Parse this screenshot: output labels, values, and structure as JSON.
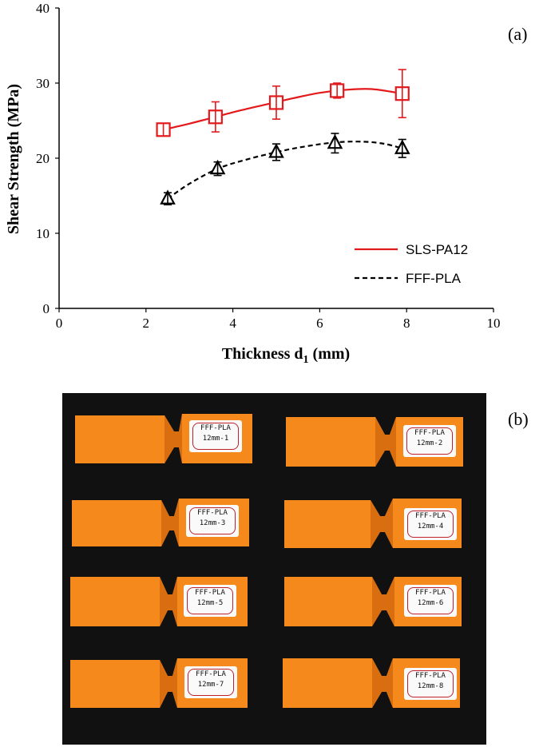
{
  "panel_a_label": "(a)",
  "panel_b_label": "(b)",
  "chart_data": {
    "type": "line",
    "xlabel_main": "Thickness d",
    "xlabel_sub": "1",
    "xlabel_unit": " (mm)",
    "ylabel": "Shear Strength (MPa)",
    "xlim": [
      0,
      10
    ],
    "ylim": [
      0,
      40
    ],
    "xticks": [
      0,
      2,
      4,
      6,
      8,
      10
    ],
    "yticks": [
      0,
      10,
      20,
      30,
      40
    ],
    "grid": false,
    "legend_position": "bottom-right",
    "series": [
      {
        "name": "SLS-PA12",
        "color": "#e3191c",
        "marker": "square",
        "line_style": "solid",
        "x": [
          2.4,
          3.6,
          5.0,
          6.4,
          7.9
        ],
        "y": [
          23.8,
          25.5,
          27.4,
          29.0,
          28.6
        ],
        "error": [
          0.0,
          2.0,
          2.2,
          1.0,
          3.2
        ],
        "curve_x": [
          2.4,
          3.0,
          3.6,
          4.2,
          4.8,
          5.4,
          6.0,
          6.6,
          7.2,
          7.9
        ],
        "curve_y": [
          23.8,
          24.6,
          25.5,
          26.4,
          27.2,
          28.0,
          28.7,
          29.1,
          29.2,
          28.6
        ]
      },
      {
        "name": "FFF-PLA",
        "color": "#000000",
        "marker": "triangle",
        "line_style": "dashed",
        "x": [
          2.5,
          3.65,
          5.0,
          6.35,
          7.9
        ],
        "y": [
          14.6,
          18.6,
          20.8,
          22.0,
          21.3
        ],
        "error": [
          0.8,
          0.9,
          1.1,
          1.3,
          1.2
        ],
        "curve_x": [
          2.5,
          3.0,
          3.65,
          4.3,
          5.0,
          5.6,
          6.35,
          7.0,
          7.5,
          7.9
        ],
        "curve_y": [
          14.6,
          16.6,
          18.6,
          19.8,
          20.8,
          21.5,
          22.1,
          22.2,
          21.9,
          21.3
        ]
      }
    ]
  },
  "specimens": [
    {
      "line1": "FFF-PLA",
      "line2": "12mm-1"
    },
    {
      "line1": "FFF-PLA",
      "line2": "12mm-2"
    },
    {
      "line1": "FFF-PLA",
      "line2": "12mm-3"
    },
    {
      "line1": "FFF-PLA",
      "line2": "12mm-4"
    },
    {
      "line1": "FFF-PLA",
      "line2": "12mm-5"
    },
    {
      "line1": "FFF-PLA",
      "line2": "12mm-6"
    },
    {
      "line1": "FFF-PLA",
      "line2": "12mm-7"
    },
    {
      "line1": "FFF-PLA",
      "line2": "12mm-8"
    }
  ],
  "colors": {
    "specimen_orange": "#f5891c",
    "specimen_shadow": "#d96e10",
    "photo_background": "#111111"
  }
}
